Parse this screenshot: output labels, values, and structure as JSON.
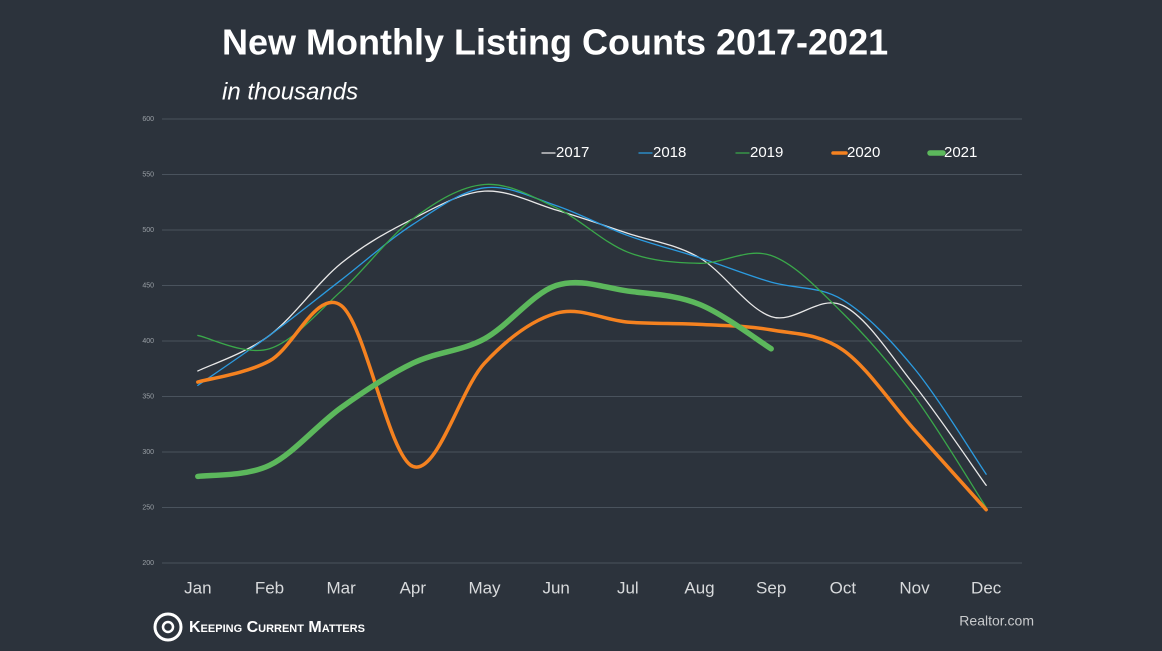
{
  "chart_data": {
    "type": "line",
    "title": "New Monthly Listing Counts 2017-2021",
    "subtitle": "in thousands",
    "categories": [
      "Jan",
      "Feb",
      "Mar",
      "Apr",
      "May",
      "Jun",
      "Jul",
      "Aug",
      "Sep",
      "Oct",
      "Nov",
      "Dec"
    ],
    "series": [
      {
        "name": "2017",
        "color": "#e8e8e8",
        "values": [
          373,
          405,
          470,
          510,
          535,
          518,
          497,
          475,
          422,
          432,
          360,
          270
        ]
      },
      {
        "name": "2018",
        "color": "#2b9be0",
        "values": [
          360,
          405,
          455,
          505,
          538,
          522,
          495,
          475,
          453,
          437,
          375,
          280
        ]
      },
      {
        "name": "2019",
        "color": "#3aa84a",
        "values": [
          405,
          393,
          445,
          510,
          541,
          520,
          480,
          470,
          477,
          425,
          350,
          250
        ]
      },
      {
        "name": "2020",
        "color": "#f58220",
        "values": [
          363,
          382,
          432,
          287,
          380,
          425,
          417,
          415,
          410,
          392,
          320,
          248
        ]
      },
      {
        "name": "2021",
        "color": "#5cb85c",
        "values": [
          278,
          288,
          340,
          380,
          402,
          450,
          445,
          433,
          393,
          null,
          null,
          null
        ]
      }
    ],
    "ylim": [
      200,
      600
    ],
    "yticks": [
      200,
      250,
      300,
      350,
      400,
      450,
      500,
      550,
      600
    ],
    "grid": true,
    "legend": "top-right",
    "brand": "Keeping Current Matters",
    "source": "Realtor.com"
  }
}
